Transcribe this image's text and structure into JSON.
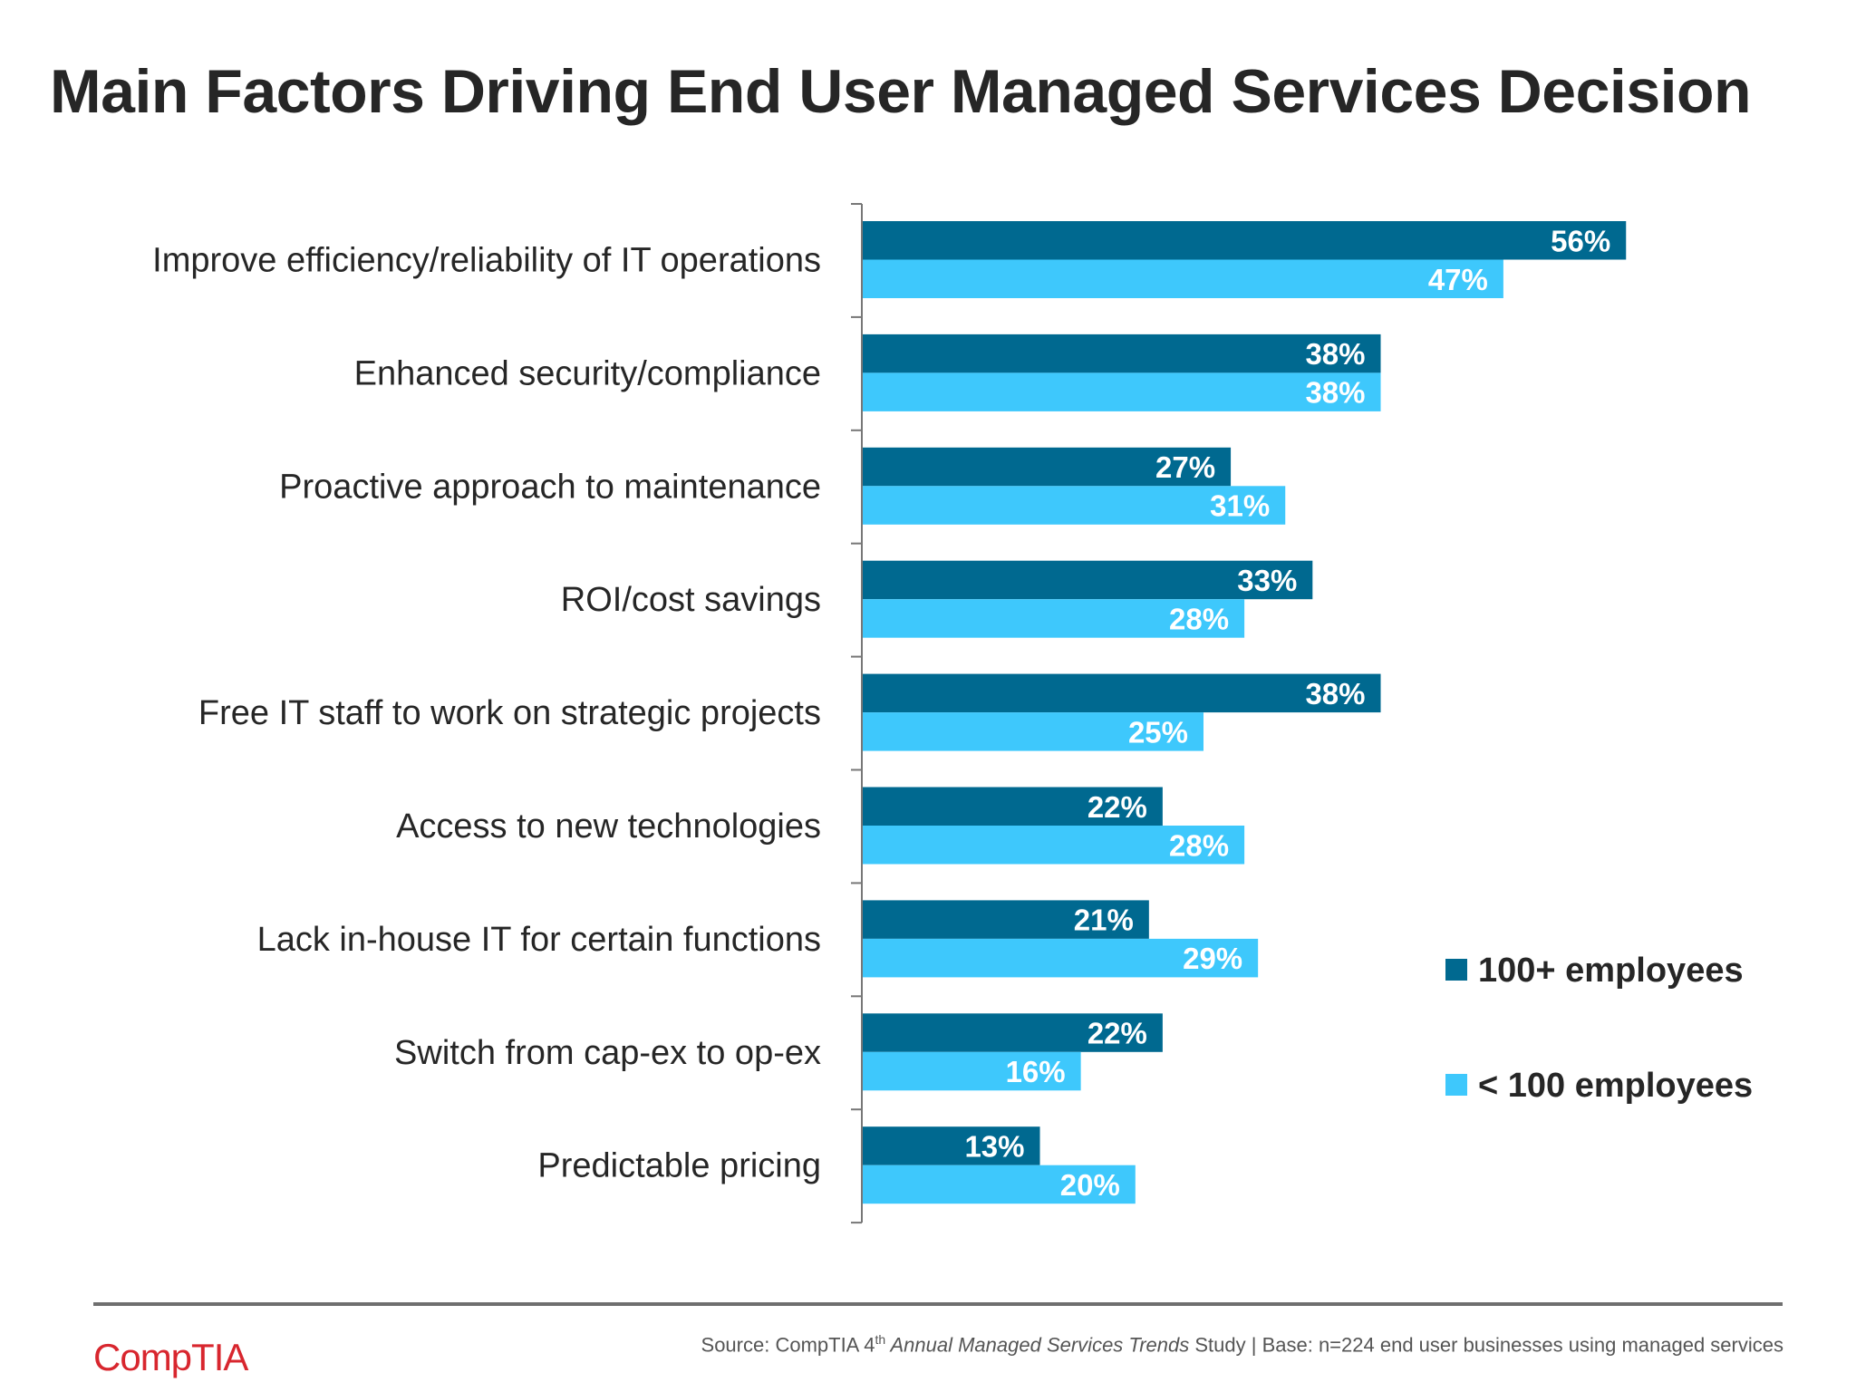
{
  "chart_data": {
    "type": "bar",
    "orientation": "horizontal",
    "title": "Main Factors Driving End User Managed Services Decision",
    "categories": [
      "Improve efficiency/reliability of IT operations",
      "Enhanced security/compliance",
      "Proactive approach to maintenance",
      "ROI/cost savings",
      "Free IT staff to work on strategic projects",
      "Access to new technologies",
      "Lack in-house IT for certain functions",
      "Switch from cap-ex to op-ex",
      "Predictable pricing"
    ],
    "series": [
      {
        "name": "100+ employees",
        "color": "#006990",
        "values": [
          56,
          38,
          27,
          33,
          38,
          22,
          21,
          22,
          13
        ]
      },
      {
        "name": "< 100 employees",
        "color": "#3ec8fc",
        "values": [
          47,
          38,
          31,
          28,
          25,
          28,
          29,
          16,
          20
        ]
      }
    ],
    "value_labels": [
      [
        "56%",
        "38%",
        "27%",
        "33%",
        "38%",
        "22%",
        "21%",
        "22%",
        "13%"
      ],
      [
        "47%",
        "38%",
        "31%",
        "28%",
        "25%",
        "28%",
        "29%",
        "16%",
        "20%"
      ]
    ],
    "xlim": [
      0,
      60
    ],
    "grid": false,
    "legend_position": "right"
  },
  "footer": {
    "logo": "CompTIA",
    "source_prefix": "Source: CompTIA 4",
    "source_sup": "th",
    "source_italic": " Annual Managed Services Trends",
    "source_suffix": " Study | Base: n=224 end user businesses using managed services"
  }
}
